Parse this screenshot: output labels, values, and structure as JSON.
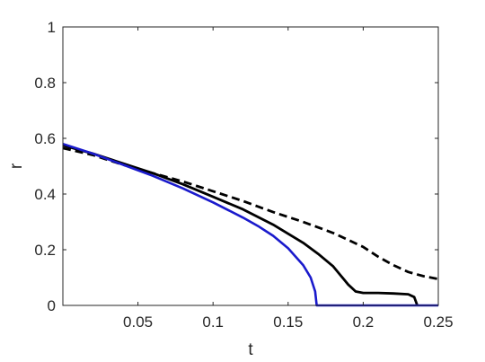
{
  "chart_data": {
    "type": "line",
    "title": "",
    "xlabel": "t",
    "ylabel": "r",
    "xlim": [
      0,
      0.25
    ],
    "ylim": [
      0,
      1
    ],
    "xticks": [
      0.05,
      0.1,
      0.15,
      0.2,
      0.25
    ],
    "xtick_labels": [
      "0.05",
      "0.1",
      "0.15",
      "0.2",
      "0.25"
    ],
    "yticks": [
      0,
      0.2,
      0.4,
      0.6,
      0.8,
      1
    ],
    "ytick_labels": [
      "0",
      "0.2",
      "0.4",
      "0.6",
      "0.8",
      "1"
    ],
    "grid": false,
    "series": [
      {
        "color": "#000000",
        "style": "dashed",
        "points": [
          [
            0,
            0.565
          ],
          [
            0.02,
            0.54
          ],
          [
            0.04,
            0.505
          ],
          [
            0.06,
            0.475
          ],
          [
            0.08,
            0.445
          ],
          [
            0.1,
            0.41
          ],
          [
            0.12,
            0.375
          ],
          [
            0.14,
            0.335
          ],
          [
            0.16,
            0.3
          ],
          [
            0.18,
            0.26
          ],
          [
            0.19,
            0.235
          ],
          [
            0.2,
            0.21
          ],
          [
            0.21,
            0.175
          ],
          [
            0.22,
            0.145
          ],
          [
            0.23,
            0.12
          ],
          [
            0.24,
            0.105
          ],
          [
            0.25,
            0.095
          ]
        ]
      },
      {
        "color": "#000000",
        "style": "solid",
        "points": [
          [
            0,
            0.575
          ],
          [
            0.02,
            0.545
          ],
          [
            0.04,
            0.51
          ],
          [
            0.06,
            0.475
          ],
          [
            0.08,
            0.435
          ],
          [
            0.1,
            0.39
          ],
          [
            0.12,
            0.345
          ],
          [
            0.14,
            0.29
          ],
          [
            0.16,
            0.225
          ],
          [
            0.17,
            0.185
          ],
          [
            0.18,
            0.14
          ],
          [
            0.19,
            0.075
          ],
          [
            0.195,
            0.05
          ],
          [
            0.2,
            0.045
          ],
          [
            0.21,
            0.045
          ],
          [
            0.22,
            0.043
          ],
          [
            0.23,
            0.04
          ],
          [
            0.234,
            0.03
          ],
          [
            0.236,
            0.0
          ]
        ]
      },
      {
        "color": "#1a1acc",
        "style": "solid",
        "points": [
          [
            0,
            0.58
          ],
          [
            0.02,
            0.545
          ],
          [
            0.04,
            0.505
          ],
          [
            0.06,
            0.465
          ],
          [
            0.08,
            0.42
          ],
          [
            0.1,
            0.37
          ],
          [
            0.12,
            0.315
          ],
          [
            0.13,
            0.285
          ],
          [
            0.14,
            0.25
          ],
          [
            0.15,
            0.205
          ],
          [
            0.16,
            0.145
          ],
          [
            0.165,
            0.1
          ],
          [
            0.168,
            0.05
          ],
          [
            0.169,
            0.0
          ],
          [
            0.25,
            0.0
          ]
        ]
      }
    ]
  }
}
